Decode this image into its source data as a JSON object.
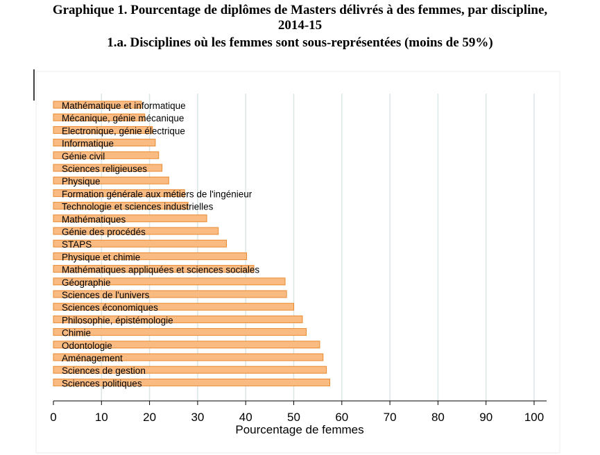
{
  "header": {
    "title_line1": "Graphique 1. Pourcentage de diplômes de Masters délivrés à des femmes, par discipline,",
    "title_line2": "2014-15",
    "subtitle": "1.a. Disciplines où les femmes sont sous-représentées (moins de 59%)"
  },
  "colors": {
    "bar_fill": "#f9bb82",
    "bar_stroke": "#e98a2f",
    "grid": "#d9e6e6",
    "axis": "#000000"
  },
  "chart_data": {
    "type": "bar",
    "orientation": "horizontal",
    "title": "Graphique 1. Pourcentage de diplômes de Masters délivrés à des femmes, par discipline, 2014-15",
    "subtitle": "1.a. Disciplines où les femmes sont sous-représentées (moins de 59%)",
    "xlabel": "Pourcentage de femmes",
    "ylabel": "",
    "xlim": [
      0,
      100
    ],
    "xticks": [
      0,
      10,
      20,
      30,
      40,
      50,
      60,
      70,
      80,
      90,
      100
    ],
    "grid": true,
    "categories": [
      "Mathématique et informatique",
      "Mécanique, génie mécanique",
      "Electronique, génie électrique",
      "Informatique",
      "Génie civil",
      "Sciences religieuses",
      "Physique",
      "Formation générale aux métiers de l'ingénieur",
      "Technologie et sciences industrielles",
      "Mathématiques",
      "Génie des procédés",
      "STAPS",
      "Physique et chimie",
      "Mathématiques appliquées et sciences sociales",
      "Géographie",
      "Sciences de l'univers",
      "Sciences économiques",
      "Philosophie, épistémologie",
      "Chimie",
      "Odontologie",
      "Aménagement",
      "Sciences de gestion",
      "Sciences politiques"
    ],
    "values": [
      18.3,
      19.0,
      20.6,
      21.2,
      21.9,
      22.6,
      24.0,
      27.3,
      28.0,
      31.9,
      34.3,
      36.0,
      40.2,
      41.7,
      48.2,
      48.5,
      50.0,
      51.8,
      52.6,
      55.4,
      56.1,
      56.8,
      57.5
    ]
  }
}
